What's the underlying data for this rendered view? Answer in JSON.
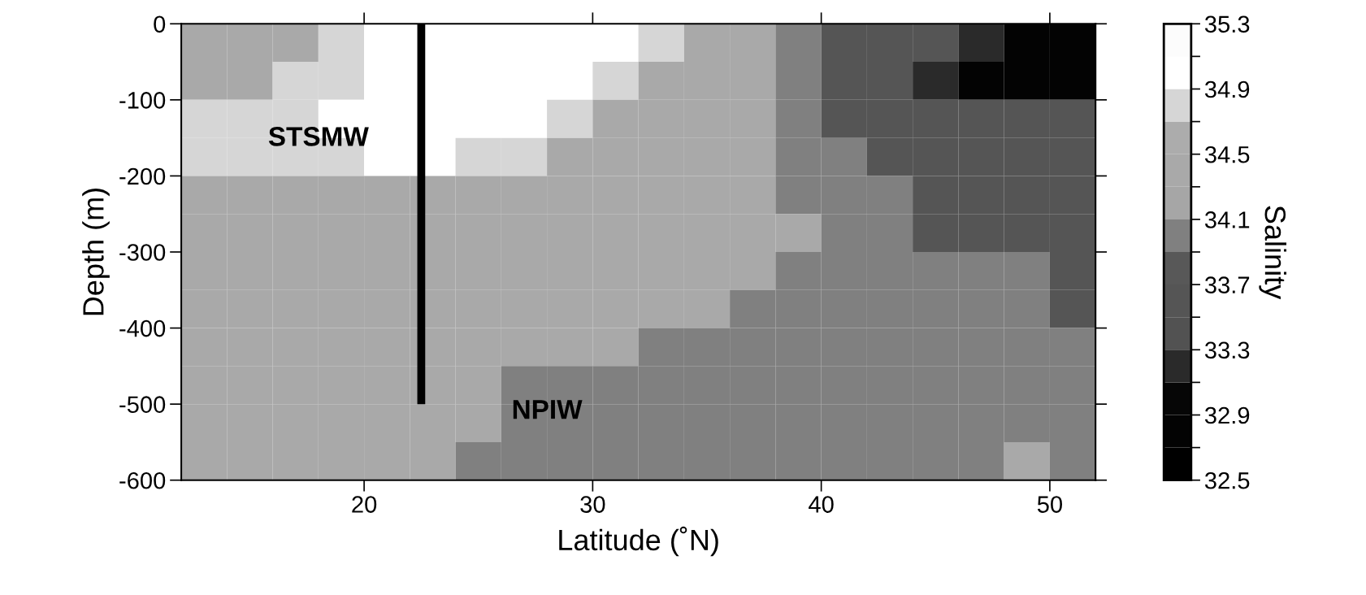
{
  "chart_data": {
    "type": "heatmap",
    "xlabel": "Latitude (˚N)",
    "ylabel": "Depth (m)",
    "clabel": "Salinity",
    "x": [
      13,
      15,
      17,
      19,
      21,
      23,
      25,
      27,
      29,
      31,
      33,
      35,
      37,
      39,
      41,
      43,
      45,
      47,
      49,
      51
    ],
    "y": [
      -25,
      -75,
      -125,
      -175,
      -225,
      -275,
      -325,
      -375,
      -425,
      -475,
      -525,
      -575
    ],
    "cells": [
      [
        34.4,
        34.4,
        34.4,
        34.8,
        35.0,
        35.0,
        35.0,
        35.0,
        35.0,
        35.0,
        34.8,
        34.4,
        34.4,
        34.0,
        33.6,
        33.6,
        33.6,
        33.2,
        32.8,
        32.8
      ],
      [
        34.4,
        34.4,
        34.8,
        34.8,
        35.0,
        35.0,
        35.0,
        35.0,
        35.0,
        34.8,
        34.4,
        34.4,
        34.4,
        34.0,
        33.6,
        33.6,
        33.2,
        32.8,
        32.8,
        32.8
      ],
      [
        34.8,
        34.8,
        34.8,
        35.0,
        35.0,
        35.0,
        35.0,
        35.0,
        34.8,
        34.4,
        34.4,
        34.4,
        34.4,
        34.0,
        33.6,
        33.6,
        33.6,
        33.6,
        33.6,
        33.6
      ],
      [
        34.8,
        34.8,
        34.8,
        34.8,
        35.0,
        35.0,
        34.8,
        34.8,
        34.4,
        34.4,
        34.4,
        34.4,
        34.4,
        34.0,
        34.0,
        33.6,
        33.6,
        33.6,
        33.6,
        33.6
      ],
      [
        34.4,
        34.4,
        34.4,
        34.4,
        34.4,
        34.4,
        34.4,
        34.4,
        34.4,
        34.4,
        34.4,
        34.4,
        34.4,
        34.0,
        34.0,
        34.0,
        33.6,
        33.6,
        33.6,
        33.6
      ],
      [
        34.4,
        34.4,
        34.4,
        34.4,
        34.4,
        34.4,
        34.4,
        34.4,
        34.4,
        34.4,
        34.4,
        34.4,
        34.4,
        34.4,
        34.0,
        34.0,
        33.6,
        33.6,
        33.6,
        33.6
      ],
      [
        34.4,
        34.4,
        34.4,
        34.4,
        34.4,
        34.4,
        34.4,
        34.4,
        34.4,
        34.4,
        34.4,
        34.4,
        34.4,
        34.0,
        34.0,
        34.0,
        34.0,
        34.0,
        34.0,
        33.6
      ],
      [
        34.4,
        34.4,
        34.4,
        34.4,
        34.4,
        34.4,
        34.4,
        34.4,
        34.4,
        34.4,
        34.4,
        34.4,
        34.0,
        34.0,
        34.0,
        34.0,
        34.0,
        34.0,
        34.0,
        33.6
      ],
      [
        34.4,
        34.4,
        34.4,
        34.4,
        34.4,
        34.4,
        34.4,
        34.4,
        34.4,
        34.4,
        34.0,
        34.0,
        34.0,
        34.0,
        34.0,
        34.0,
        34.0,
        34.0,
        34.0,
        34.0
      ],
      [
        34.4,
        34.4,
        34.4,
        34.4,
        34.4,
        34.4,
        34.4,
        34.0,
        34.0,
        34.0,
        34.0,
        34.0,
        34.0,
        34.0,
        34.0,
        34.0,
        34.0,
        34.0,
        34.0,
        34.0
      ],
      [
        34.4,
        34.4,
        34.4,
        34.4,
        34.4,
        34.4,
        34.4,
        34.0,
        34.0,
        34.0,
        34.0,
        34.0,
        34.0,
        34.0,
        34.0,
        34.0,
        34.0,
        34.0,
        34.0,
        34.0
      ],
      [
        34.4,
        34.4,
        34.4,
        34.4,
        34.4,
        34.4,
        34.0,
        34.0,
        34.0,
        34.0,
        34.0,
        34.0,
        34.0,
        34.0,
        34.0,
        34.0,
        34.0,
        34.0,
        34.4,
        34.0
      ]
    ],
    "colors": [
      "#000000",
      "#030303",
      "#060606",
      "#2a2a2a",
      "#525252",
      "#555555",
      "#585858",
      "#808080",
      "#a6a6a6",
      "#a9a9a9",
      "#acacac",
      "#d6d6d6",
      "#ffffff",
      "#fcfcfc"
    ],
    "clim": [
      32.5,
      35.3
    ],
    "cticks": [
      32.5,
      {
        "value": 32.7,
        "label": null
      },
      32.9,
      {
        "value": 33.1,
        "label": null
      },
      33.3,
      {
        "value": 33.5,
        "label": null
      },
      33.7,
      {
        "value": 33.9,
        "label": null
      },
      34.1,
      {
        "value": 34.3,
        "label": null
      },
      34.5,
      {
        "value": 34.7,
        "label": null
      },
      34.9,
      {
        "value": 35.1,
        "label": null
      },
      35.3
    ],
    "xlim": [
      12,
      52
    ],
    "xticks": [
      20,
      30,
      40,
      50
    ],
    "ylim": [
      -600,
      0
    ],
    "yticks": [
      -600,
      -500,
      -400,
      -300,
      -200,
      -100,
      0
    ],
    "series": [
      {
        "type": "line",
        "color": "#000000",
        "x": [
          22.5,
          22.5
        ],
        "values": [
          0,
          -500
        ]
      }
    ],
    "annotations": [
      "STSMW",
      "NPIW"
    ],
    "grid": false
  }
}
